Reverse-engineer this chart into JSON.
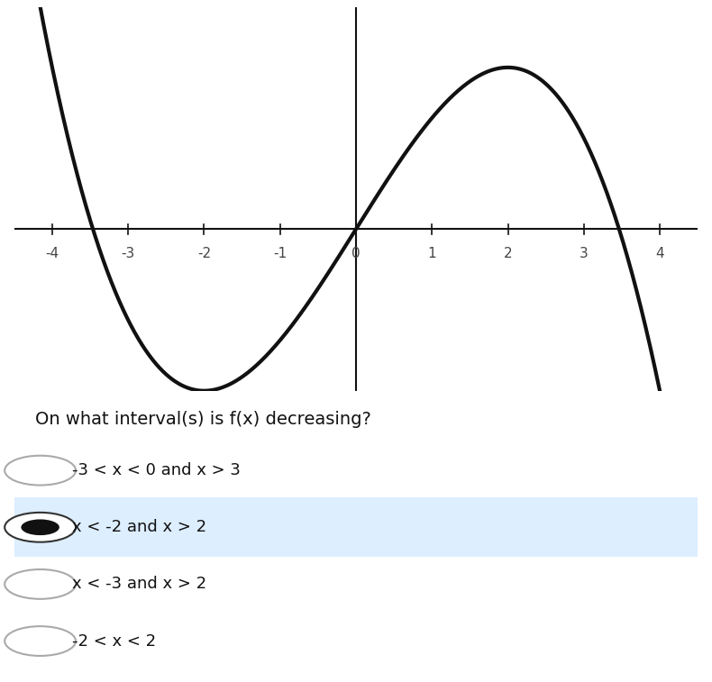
{
  "question": "On what interval(s) is f(x) decreasing?",
  "options": [
    "-3 < x < 0 and x > 3",
    "x < -2 and x > 2",
    "x < -3 and x > 2",
    "-2 < x < 2"
  ],
  "correct_index": 1,
  "xlim": [
    -4.5,
    4.5
  ],
  "ylim": [
    -16,
    22
  ],
  "xticks": [
    -4,
    -3,
    -2,
    -1,
    0,
    1,
    2,
    3,
    4
  ],
  "curve_color": "#111111",
  "curve_linewidth": 3.0,
  "axis_color": "#111111",
  "bg_color": "#ffffff",
  "selected_bg": "#ddeeff",
  "font_size_question": 14,
  "font_size_options": 13,
  "font_size_ticks": 11
}
